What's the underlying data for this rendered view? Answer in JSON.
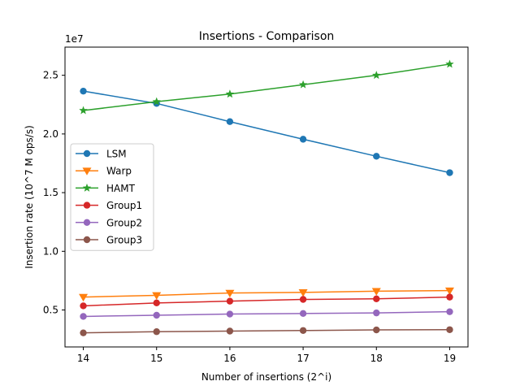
{
  "chart_data": {
    "type": "line",
    "title": "Insertions - Comparison",
    "xlabel": "Number of insertions (2^i)",
    "ylabel": "Insertion rate (10^7 M ops/s)",
    "y_offset_label": "1e7",
    "x": [
      14,
      15,
      16,
      17,
      18,
      19
    ],
    "xticks": [
      "14",
      "15",
      "16",
      "17",
      "18",
      "19"
    ],
    "yticks": [
      {
        "value": 5000000,
        "label": "0.5"
      },
      {
        "value": 10000000,
        "label": "1.0"
      },
      {
        "value": 15000000,
        "label": "1.5"
      },
      {
        "value": 20000000,
        "label": "2.0"
      },
      {
        "value": 25000000,
        "label": "2.5"
      }
    ],
    "xlim": [
      13.75,
      19.25
    ],
    "ylim": [
      1850000,
      27400000
    ],
    "grid": false,
    "legend_position": "center-left",
    "series": [
      {
        "name": "LSM",
        "color": "#1f77b4",
        "marker": "circle",
        "values": [
          23650000,
          22600000,
          21050000,
          19550000,
          18100000,
          16700000
        ]
      },
      {
        "name": "Warp",
        "color": "#ff7f0e",
        "marker": "triangle-down",
        "values": [
          6100000,
          6250000,
          6450000,
          6500000,
          6600000,
          6650000
        ]
      },
      {
        "name": "HAMT",
        "color": "#2ca02c",
        "marker": "star",
        "values": [
          22000000,
          22750000,
          23400000,
          24200000,
          25000000,
          25950000
        ]
      },
      {
        "name": "Group1",
        "color": "#d62728",
        "marker": "circle",
        "values": [
          5350000,
          5600000,
          5750000,
          5900000,
          5950000,
          6100000
        ]
      },
      {
        "name": "Group2",
        "color": "#9467bd",
        "marker": "circle",
        "values": [
          4450000,
          4550000,
          4650000,
          4700000,
          4750000,
          4850000
        ]
      },
      {
        "name": "Group3",
        "color": "#8c564b",
        "marker": "circle",
        "values": [
          3050000,
          3150000,
          3200000,
          3250000,
          3300000,
          3320000
        ]
      }
    ]
  }
}
